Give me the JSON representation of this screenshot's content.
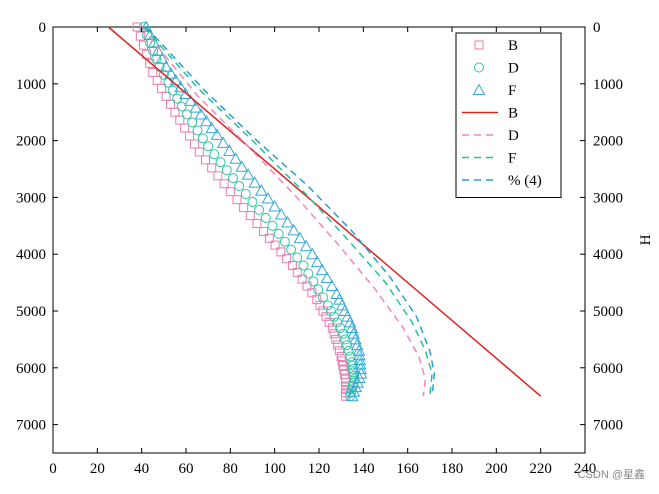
{
  "chart_data": {
    "type": "scatter",
    "title": "",
    "xlabel": "",
    "ylabel_right": "H",
    "xlim": [
      0,
      240
    ],
    "ylim": [
      0,
      7500
    ],
    "y_inverted": true,
    "x_ticks": [
      0,
      20,
      40,
      60,
      80,
      100,
      120,
      140,
      160,
      180,
      200,
      220,
      240
    ],
    "y_ticks": [
      0,
      1000,
      2000,
      3000,
      4000,
      5000,
      6000,
      7000
    ],
    "grid": false,
    "legend_position": "top-right",
    "series": [
      {
        "name": "B",
        "style": "marker",
        "marker": "square",
        "color": "#e87cb4",
        "points": [
          [
            38,
            0
          ],
          [
            45,
            800
          ],
          [
            55,
            1500
          ],
          [
            66,
            2200
          ],
          [
            80,
            2900
          ],
          [
            95,
            3600
          ],
          [
            108,
            4200
          ],
          [
            119,
            4800
          ],
          [
            126,
            5300
          ],
          [
            130,
            5800
          ],
          [
            132,
            6200
          ],
          [
            132,
            6500
          ]
        ]
      },
      {
        "name": "D",
        "style": "marker",
        "marker": "circle",
        "color": "#2ec8a6",
        "points": [
          [
            41,
            0
          ],
          [
            48,
            700
          ],
          [
            58,
            1400
          ],
          [
            70,
            2100
          ],
          [
            84,
            2800
          ],
          [
            99,
            3500
          ],
          [
            113,
            4200
          ],
          [
            124,
            4900
          ],
          [
            131,
            5400
          ],
          [
            135,
            5900
          ],
          [
            136,
            6200
          ],
          [
            134,
            6500
          ]
        ]
      },
      {
        "name": "F",
        "style": "marker",
        "marker": "triangle",
        "color": "#35a8d8",
        "points": [
          [
            42,
            0
          ],
          [
            51,
            700
          ],
          [
            62,
            1300
          ],
          [
            74,
            1900
          ],
          [
            88,
            2600
          ],
          [
            103,
            3300
          ],
          [
            117,
            4000
          ],
          [
            128,
            4700
          ],
          [
            134,
            5200
          ],
          [
            138,
            5700
          ],
          [
            139,
            6100
          ],
          [
            135,
            6500
          ]
        ]
      },
      {
        "name": "B",
        "style": "solid",
        "color": "#dd2222",
        "points": [
          [
            25,
            0
          ],
          [
            220,
            6500
          ]
        ]
      },
      {
        "name": "D",
        "style": "dashed",
        "color": "#ee88bb",
        "points": [
          [
            40,
            0
          ],
          [
            65,
            1200
          ],
          [
            88,
            2100
          ],
          [
            110,
            3000
          ],
          [
            128,
            3800
          ],
          [
            145,
            4600
          ],
          [
            158,
            5300
          ],
          [
            165,
            5800
          ],
          [
            168,
            6200
          ],
          [
            167,
            6500
          ]
        ]
      },
      {
        "name": "F",
        "style": "dashed",
        "color": "#22c39a",
        "points": [
          [
            41,
            0
          ],
          [
            66,
            1100
          ],
          [
            90,
            2000
          ],
          [
            113,
            2900
          ],
          [
            132,
            3700
          ],
          [
            150,
            4500
          ],
          [
            162,
            5200
          ],
          [
            168,
            5700
          ],
          [
            171,
            6100
          ],
          [
            170,
            6500
          ]
        ]
      },
      {
        "name": "% (4)",
        "style": "dashed",
        "color": "#2a9fd6",
        "points": [
          [
            42,
            0
          ],
          [
            68,
            1100
          ],
          [
            92,
            2000
          ],
          [
            115,
            2800
          ],
          [
            135,
            3600
          ],
          [
            152,
            4400
          ],
          [
            164,
            5100
          ],
          [
            170,
            5700
          ],
          [
            172,
            6100
          ],
          [
            171,
            6500
          ]
        ]
      }
    ]
  },
  "watermark": "CSDN @星鑫"
}
